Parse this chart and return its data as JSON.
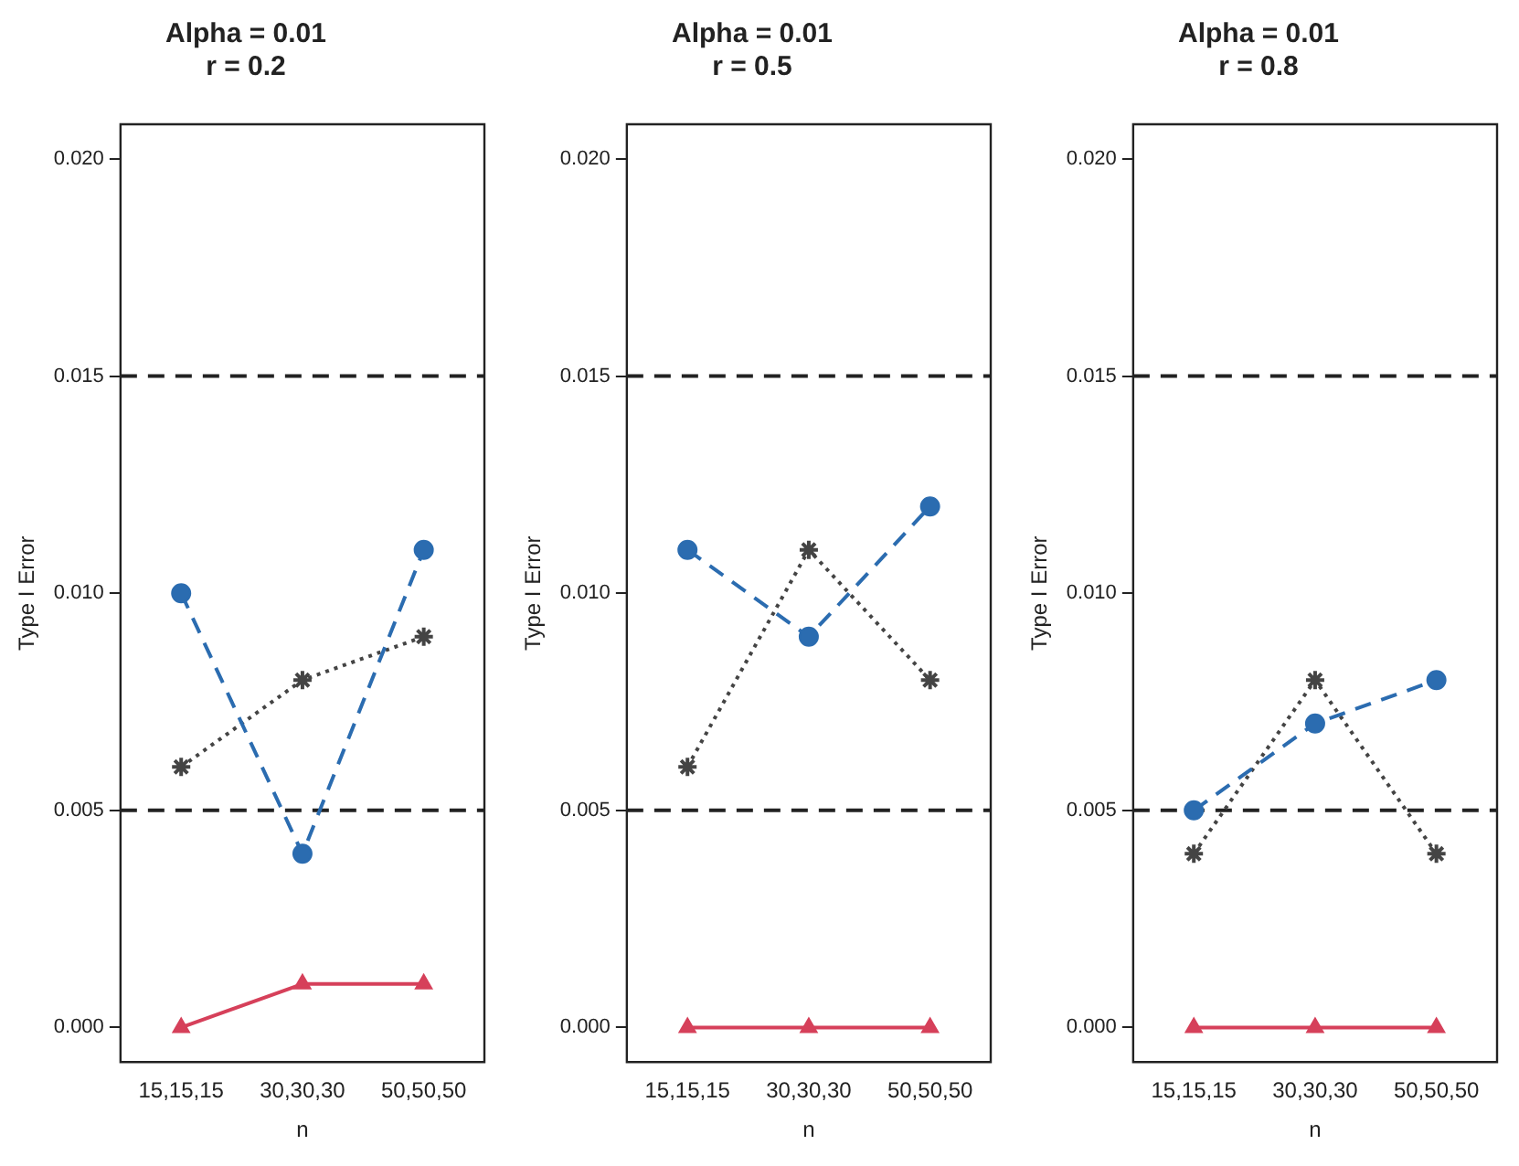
{
  "chart_data": [
    {
      "type": "line",
      "title": "Alpha = 0.01",
      "subtitle": "r = 0.2",
      "xlabel": "n",
      "ylabel": "Type I Error",
      "categories": [
        "15,15,15",
        "30,30,30",
        "50,50,50"
      ],
      "ylim": [
        -0.0008,
        0.0208
      ],
      "yticks": [
        {
          "value": 0,
          "label": "0.000"
        },
        {
          "value": 0.005,
          "label": "0.005"
        },
        {
          "value": 0.01,
          "label": "0.010"
        },
        {
          "value": 0.015,
          "label": "0.015"
        },
        {
          "value": 0.02,
          "label": "0.020"
        }
      ],
      "grid": false,
      "legend": false,
      "series": [
        {
          "color": "#2b6cb0",
          "values": [
            0.01,
            0.004,
            0.011
          ],
          "marker": "circle",
          "line_style": "dashed"
        },
        {
          "color": "#444444",
          "values": [
            0.006,
            0.008,
            0.009
          ],
          "marker": "cross",
          "line_style": "dotted"
        },
        {
          "color": "#d6405a",
          "values": [
            0,
            0.001,
            0.001
          ],
          "marker": "triangle",
          "line_style": "solid"
        }
      ],
      "ref_lines": [
        {
          "axis": "y",
          "value": 0.005,
          "color": "#222222",
          "line_style": "dashed"
        },
        {
          "axis": "y",
          "value": 0.015,
          "color": "#222222",
          "line_style": "dashed"
        }
      ]
    },
    {
      "type": "line",
      "title": "Alpha = 0.01",
      "subtitle": "r = 0.5",
      "xlabel": "n",
      "ylabel": "Type I Error",
      "categories": [
        "15,15,15",
        "30,30,30",
        "50,50,50"
      ],
      "ylim": [
        -0.0008,
        0.0208
      ],
      "yticks": [
        {
          "value": 0,
          "label": "0.000"
        },
        {
          "value": 0.005,
          "label": "0.005"
        },
        {
          "value": 0.01,
          "label": "0.010"
        },
        {
          "value": 0.015,
          "label": "0.015"
        },
        {
          "value": 0.02,
          "label": "0.020"
        }
      ],
      "grid": false,
      "legend": false,
      "series": [
        {
          "color": "#2b6cb0",
          "values": [
            0.011,
            0.009,
            0.012
          ],
          "marker": "circle",
          "line_style": "dashed"
        },
        {
          "color": "#444444",
          "values": [
            0.006,
            0.011,
            0.008
          ],
          "marker": "cross",
          "line_style": "dotted"
        },
        {
          "color": "#d6405a",
          "values": [
            0,
            0,
            0
          ],
          "marker": "triangle",
          "line_style": "solid"
        }
      ],
      "ref_lines": [
        {
          "axis": "y",
          "value": 0.005,
          "color": "#222222",
          "line_style": "dashed"
        },
        {
          "axis": "y",
          "value": 0.015,
          "color": "#222222",
          "line_style": "dashed"
        }
      ]
    },
    {
      "type": "line",
      "title": "Alpha = 0.01",
      "subtitle": "r = 0.8",
      "xlabel": "n",
      "ylabel": "Type I Error",
      "categories": [
        "15,15,15",
        "30,30,30",
        "50,50,50"
      ],
      "ylim": [
        -0.0008,
        0.0208
      ],
      "yticks": [
        {
          "value": 0,
          "label": "0.000"
        },
        {
          "value": 0.005,
          "label": "0.005"
        },
        {
          "value": 0.01,
          "label": "0.010"
        },
        {
          "value": 0.015,
          "label": "0.015"
        },
        {
          "value": 0.02,
          "label": "0.020"
        }
      ],
      "grid": false,
      "legend": false,
      "series": [
        {
          "color": "#2b6cb0",
          "values": [
            0.005,
            0.007,
            0.008
          ],
          "marker": "circle",
          "line_style": "dashed"
        },
        {
          "color": "#444444",
          "values": [
            0.004,
            0.008,
            0.004
          ],
          "marker": "cross",
          "line_style": "dotted"
        },
        {
          "color": "#d6405a",
          "values": [
            0,
            0,
            0
          ],
          "marker": "triangle",
          "line_style": "solid"
        }
      ],
      "ref_lines": [
        {
          "axis": "y",
          "value": 0.005,
          "color": "#222222",
          "line_style": "dashed"
        },
        {
          "axis": "y",
          "value": 0.015,
          "color": "#222222",
          "line_style": "dashed"
        }
      ]
    }
  ]
}
